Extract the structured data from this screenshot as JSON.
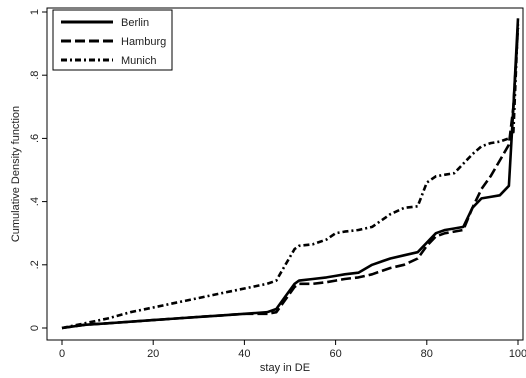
{
  "chart_data": {
    "type": "line",
    "title": "",
    "xlabel": "stay in DE",
    "ylabel": "Cumulative Density function",
    "xlim": [
      0,
      100
    ],
    "ylim": [
      0,
      1
    ],
    "xticks": [
      0,
      20,
      40,
      60,
      80,
      100
    ],
    "xtick_labels": [
      "0",
      "20",
      "40",
      "60",
      "80",
      "100"
    ],
    "yticks": [
      0,
      0.2,
      0.4,
      0.6,
      0.8,
      1
    ],
    "ytick_labels": [
      "0",
      ".2",
      ".4",
      ".6",
      ".8",
      "1"
    ],
    "grid": false,
    "legend_position": "top-left",
    "series": [
      {
        "name": "Berlin",
        "style": "solid",
        "color": "#000000",
        "x": [
          0,
          5,
          10,
          15,
          20,
          25,
          30,
          35,
          40,
          45,
          47,
          49,
          51,
          52,
          55,
          58,
          60,
          62,
          65,
          68,
          70,
          72,
          75,
          78,
          80,
          82,
          84,
          86,
          88,
          90,
          92,
          94,
          96,
          98,
          99,
          100
        ],
        "y": [
          0,
          0.01,
          0.015,
          0.02,
          0.025,
          0.03,
          0.035,
          0.04,
          0.045,
          0.05,
          0.06,
          0.1,
          0.14,
          0.15,
          0.155,
          0.16,
          0.165,
          0.17,
          0.175,
          0.2,
          0.21,
          0.22,
          0.23,
          0.24,
          0.27,
          0.3,
          0.31,
          0.315,
          0.32,
          0.38,
          0.41,
          0.415,
          0.42,
          0.45,
          0.7,
          0.98
        ]
      },
      {
        "name": "Hamburg",
        "style": "dashed",
        "color": "#000000",
        "x": [
          0,
          5,
          10,
          15,
          20,
          25,
          30,
          35,
          40,
          45,
          47,
          49,
          51,
          52,
          55,
          58,
          60,
          62,
          65,
          68,
          70,
          72,
          75,
          78,
          80,
          82,
          84,
          86,
          88,
          90,
          92,
          94,
          96,
          98,
          99,
          100
        ],
        "y": [
          0,
          0.01,
          0.015,
          0.02,
          0.025,
          0.03,
          0.035,
          0.04,
          0.045,
          0.045,
          0.05,
          0.09,
          0.13,
          0.14,
          0.14,
          0.145,
          0.15,
          0.155,
          0.16,
          0.17,
          0.18,
          0.19,
          0.2,
          0.22,
          0.26,
          0.29,
          0.3,
          0.305,
          0.31,
          0.38,
          0.44,
          0.48,
          0.53,
          0.58,
          0.7,
          0.95
        ]
      },
      {
        "name": "Munich",
        "style": "dash-dot",
        "color": "#000000",
        "x": [
          0,
          5,
          10,
          15,
          20,
          25,
          30,
          35,
          40,
          45,
          47,
          49,
          51,
          52,
          55,
          58,
          60,
          62,
          65,
          68,
          70,
          72,
          75,
          78,
          80,
          82,
          84,
          86,
          88,
          90,
          92,
          94,
          96,
          98,
          99,
          100
        ],
        "y": [
          0,
          0.015,
          0.03,
          0.05,
          0.065,
          0.08,
          0.095,
          0.11,
          0.125,
          0.14,
          0.15,
          0.2,
          0.25,
          0.26,
          0.265,
          0.28,
          0.3,
          0.305,
          0.31,
          0.32,
          0.34,
          0.36,
          0.38,
          0.385,
          0.46,
          0.48,
          0.485,
          0.49,
          0.52,
          0.55,
          0.575,
          0.585,
          0.59,
          0.6,
          0.62,
          0.97
        ]
      }
    ]
  }
}
